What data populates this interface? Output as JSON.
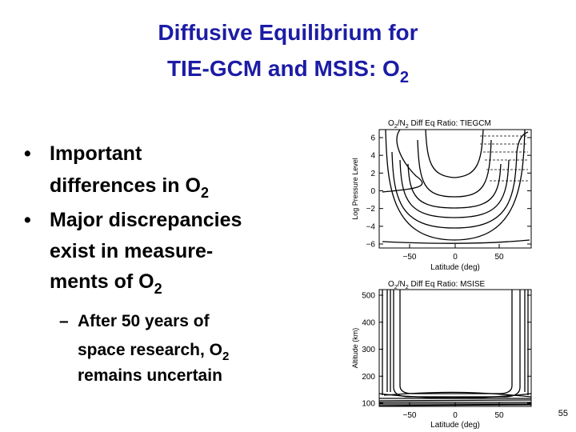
{
  "title": {
    "lines": [
      [
        {
          "text": "Diffusive Equilibrium for"
        }
      ],
      [
        {
          "text": "TIE-GCM and MSIS: O"
        },
        {
          "text": "2",
          "sub": true
        }
      ]
    ]
  },
  "bullets": [
    {
      "marker": "•",
      "lines": [
        [
          {
            "text": "Important"
          }
        ],
        [
          {
            "text": "differences in O"
          },
          {
            "text": "2",
            "sub": true
          }
        ]
      ]
    },
    {
      "marker": "•",
      "lines": [
        [
          {
            "text": "Major discrepancies"
          }
        ],
        [
          {
            "text": "exist in measure-"
          }
        ],
        [
          {
            "text": "ments of O"
          },
          {
            "text": "2",
            "sub": true
          }
        ]
      ]
    }
  ],
  "sub_bullets": [
    {
      "marker": "–",
      "lines": [
        [
          {
            "text": "After 50 years of"
          }
        ],
        [
          {
            "text": "space research, O"
          },
          {
            "text": "2",
            "sub": true
          }
        ],
        [
          {
            "text": "remains uncertain"
          }
        ]
      ]
    }
  ],
  "plots": [
    {
      "title": [
        {
          "text": "O"
        },
        {
          "text": "2",
          "sub": true
        },
        {
          "text": "/N"
        },
        {
          "text": "2",
          "sub": true
        },
        {
          "text": " Diff Eq Ratio: TIEGCM"
        }
      ],
      "y_label": "Log Pressure Level",
      "y_ticks": [
        "6",
        "4",
        "2",
        "0",
        "−2",
        "−4",
        "−6"
      ],
      "x_ticks": [
        "−50",
        "0",
        "50"
      ],
      "x_label": "Latitude (deg)"
    },
    {
      "title": [
        {
          "text": "O"
        },
        {
          "text": "2",
          "sub": true
        },
        {
          "text": "/N"
        },
        {
          "text": "2",
          "sub": true
        },
        {
          "text": " Diff Eq Ratio: MSISE"
        }
      ],
      "y_label": "Altitude (km)",
      "y_ticks": [
        "500",
        "400",
        "300",
        "200",
        "100"
      ],
      "x_ticks": [
        "−50",
        "0",
        "50"
      ],
      "x_label": "Latitude (deg)"
    }
  ],
  "page_number": "55"
}
